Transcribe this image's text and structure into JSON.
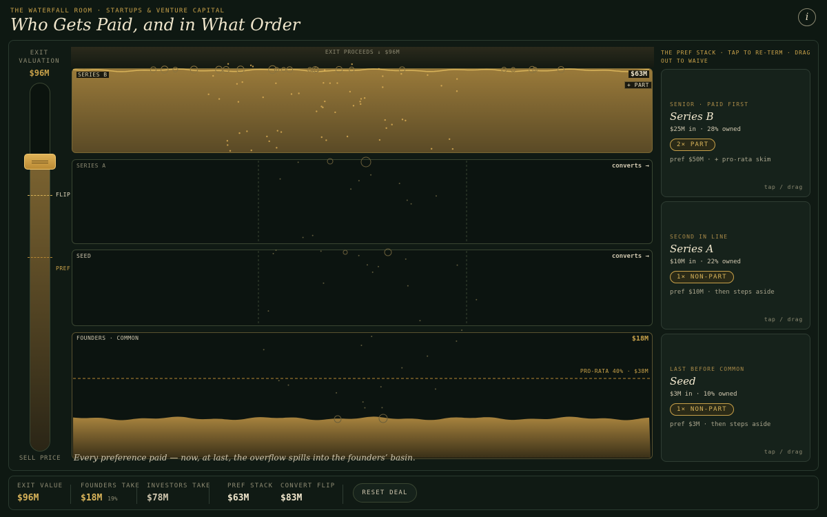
{
  "header": {
    "kicker": "THE WATERFALL ROOM · STARTUPS & VENTURE CAPITAL",
    "title": "Who Gets Paid, and in What Order",
    "info_icon": "i"
  },
  "slider": {
    "label": "EXIT VALUATION",
    "value": "$96M",
    "flip": "FLIP $83M",
    "pref": "PREF $63M",
    "footer": "SELL PRICE"
  },
  "basin": {
    "heading": "EXIT PROCEEDS ↓ $96M",
    "tiers": [
      {
        "label": "SERIES B",
        "amount": "$63M",
        "tag": "+ PART"
      },
      {
        "label": "SERIES A",
        "status": "converts →"
      },
      {
        "label": "SEED",
        "status": "converts →"
      },
      {
        "label": "FOUNDERS · COMMON",
        "amount": "$18M",
        "marker": "PRO-RATA 40% · $38M"
      }
    ],
    "caption": "Every preference paid — now, at last, the overflow spills into the founders’ basin."
  },
  "stack": {
    "heading": "THE PREF STACK · TAP TO RE-TERM · DRAG OUT TO WAIVE",
    "cards": [
      {
        "rank": "SENIOR · PAID FIRST",
        "name": "Series B",
        "stats": "$25M in · 28% owned",
        "badge": "2× PART",
        "pref": "pref $50M · + pro-rata skim",
        "hint": "tap / drag"
      },
      {
        "rank": "SECOND IN LINE",
        "name": "Series A",
        "stats": "$10M in · 22% owned",
        "badge": "1× NON-PART",
        "pref": "pref $10M · then steps aside",
        "hint": "tap / drag"
      },
      {
        "rank": "LAST BEFORE COMMON",
        "name": "Seed",
        "stats": "$3M in · 10% owned",
        "badge": "1× NON-PART",
        "pref": "pref $3M · then steps aside",
        "hint": "tap / drag"
      }
    ]
  },
  "summary": {
    "stats": [
      {
        "label": "EXIT VALUE",
        "value": "$96M"
      },
      {
        "label": "FOUNDERS TAKE",
        "value": "$18M",
        "note": "19%"
      },
      {
        "label": "INVESTORS TAKE",
        "value": "$78M"
      },
      {
        "label": "PREF STACK",
        "value": "$63M"
      },
      {
        "label": "CONVERT FLIP",
        "value": "$83M"
      }
    ],
    "reset": "RESET DEAL"
  }
}
